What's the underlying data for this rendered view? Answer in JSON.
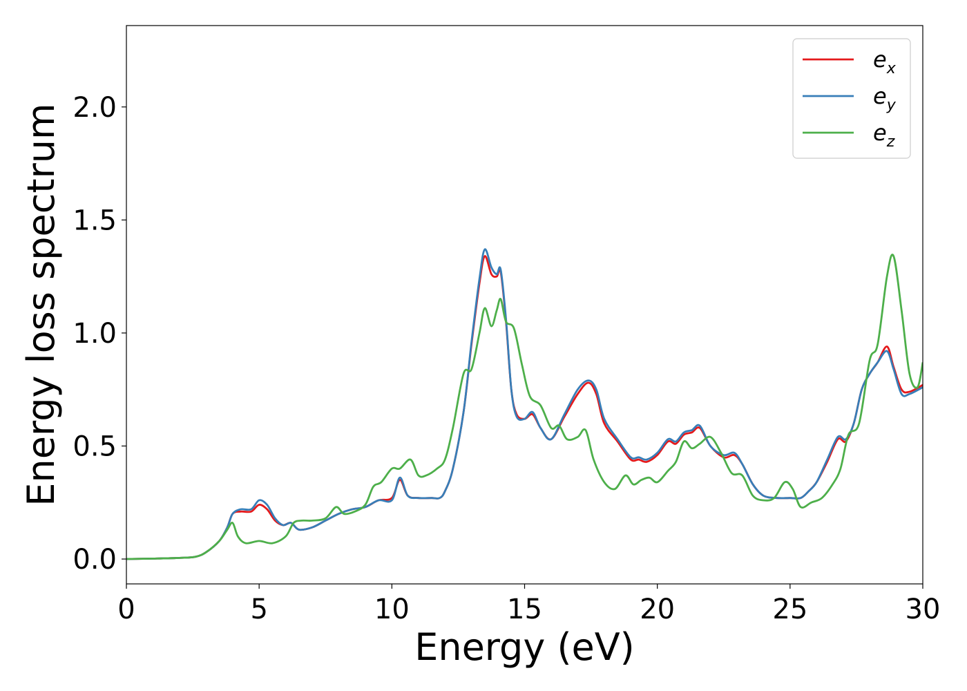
{
  "chart_data": {
    "type": "line",
    "title": "",
    "xlabel": "Energy (eV)",
    "ylabel": "Energy loss spectrum",
    "xlim": [
      0,
      30
    ],
    "ylim": [
      -0.11,
      2.36
    ],
    "xticks": [
      "0",
      "5",
      "10",
      "15",
      "20",
      "25",
      "30"
    ],
    "xtick_values": [
      0,
      5,
      10,
      15,
      20,
      25,
      30
    ],
    "yticks": [
      "0.0",
      "0.5",
      "1.0",
      "1.5",
      "2.0"
    ],
    "ytick_values": [
      0,
      0.5,
      1.0,
      1.5,
      2.0
    ],
    "grid": false,
    "legend_position": "top-right",
    "series": [
      {
        "name": "e",
        "subscript": "x",
        "color": "#e41a1c",
        "x": [
          0,
          1,
          2,
          2.6,
          3.0,
          3.5,
          3.8,
          4.0,
          4.3,
          4.7,
          5.0,
          5.3,
          5.6,
          5.9,
          6.2,
          6.5,
          7.0,
          7.5,
          8.0,
          8.5,
          9.0,
          9.5,
          10.0,
          10.3,
          10.6,
          11.0,
          11.5,
          11.8,
          12.0,
          12.3,
          12.7,
          13.0,
          13.3,
          13.5,
          13.75,
          13.95,
          14.1,
          14.3,
          14.5,
          14.7,
          15.0,
          15.3,
          15.6,
          16.0,
          16.5,
          17.0,
          17.4,
          17.7,
          18.0,
          18.5,
          19.0,
          19.3,
          19.6,
          20.0,
          20.4,
          20.7,
          21.0,
          21.3,
          21.6,
          22.0,
          22.5,
          22.9,
          23.2,
          23.6,
          24.0,
          24.5,
          25.0,
          25.4,
          25.7,
          26.0,
          26.4,
          26.8,
          27.1,
          27.4,
          27.7,
          28.0,
          28.3,
          28.65,
          28.9,
          29.2,
          29.5,
          30.0
        ],
        "y": [
          0,
          0.002,
          0.005,
          0.01,
          0.03,
          0.08,
          0.14,
          0.2,
          0.21,
          0.21,
          0.24,
          0.22,
          0.17,
          0.15,
          0.16,
          0.13,
          0.14,
          0.17,
          0.2,
          0.22,
          0.23,
          0.26,
          0.27,
          0.35,
          0.28,
          0.27,
          0.27,
          0.27,
          0.3,
          0.4,
          0.65,
          0.95,
          1.22,
          1.34,
          1.26,
          1.25,
          1.27,
          1.05,
          0.75,
          0.64,
          0.62,
          0.64,
          0.58,
          0.53,
          0.63,
          0.73,
          0.78,
          0.73,
          0.6,
          0.52,
          0.44,
          0.44,
          0.43,
          0.46,
          0.52,
          0.51,
          0.55,
          0.56,
          0.58,
          0.5,
          0.45,
          0.46,
          0.42,
          0.33,
          0.28,
          0.27,
          0.27,
          0.27,
          0.3,
          0.34,
          0.43,
          0.53,
          0.52,
          0.6,
          0.75,
          0.82,
          0.87,
          0.94,
          0.85,
          0.75,
          0.74,
          0.77
        ]
      },
      {
        "name": "e",
        "subscript": "y",
        "color": "#377eb8",
        "x": [
          0,
          1,
          2,
          2.6,
          3.0,
          3.5,
          3.8,
          4.0,
          4.3,
          4.7,
          5.0,
          5.3,
          5.6,
          5.9,
          6.2,
          6.5,
          7.0,
          7.5,
          8.0,
          8.5,
          9.0,
          9.5,
          10.0,
          10.3,
          10.6,
          11.0,
          11.5,
          11.8,
          12.0,
          12.3,
          12.7,
          13.0,
          13.3,
          13.5,
          13.75,
          13.95,
          14.1,
          14.3,
          14.5,
          14.7,
          15.0,
          15.3,
          15.6,
          16.0,
          16.5,
          17.0,
          17.4,
          17.7,
          18.0,
          18.5,
          19.0,
          19.3,
          19.6,
          20.0,
          20.4,
          20.7,
          21.0,
          21.3,
          21.6,
          22.0,
          22.5,
          22.9,
          23.2,
          23.6,
          24.0,
          24.5,
          25.0,
          25.4,
          25.7,
          26.0,
          26.4,
          26.8,
          27.1,
          27.4,
          27.7,
          28.0,
          28.3,
          28.65,
          28.9,
          29.2,
          29.5,
          30.0
        ],
        "y": [
          0,
          0.002,
          0.005,
          0.01,
          0.03,
          0.08,
          0.14,
          0.2,
          0.22,
          0.22,
          0.26,
          0.24,
          0.18,
          0.15,
          0.16,
          0.13,
          0.14,
          0.17,
          0.2,
          0.22,
          0.23,
          0.26,
          0.26,
          0.36,
          0.28,
          0.27,
          0.27,
          0.27,
          0.3,
          0.4,
          0.65,
          0.96,
          1.24,
          1.37,
          1.29,
          1.26,
          1.28,
          1.06,
          0.75,
          0.63,
          0.62,
          0.65,
          0.58,
          0.53,
          0.64,
          0.75,
          0.79,
          0.75,
          0.62,
          0.53,
          0.45,
          0.45,
          0.44,
          0.47,
          0.53,
          0.52,
          0.56,
          0.57,
          0.59,
          0.5,
          0.46,
          0.47,
          0.42,
          0.33,
          0.28,
          0.27,
          0.27,
          0.27,
          0.3,
          0.34,
          0.44,
          0.54,
          0.53,
          0.6,
          0.75,
          0.82,
          0.87,
          0.92,
          0.84,
          0.73,
          0.73,
          0.76
        ]
      },
      {
        "name": "e",
        "subscript": "z",
        "color": "#4daf4a",
        "x": [
          0,
          1,
          2,
          2.6,
          3.0,
          3.5,
          3.8,
          4.0,
          4.2,
          4.5,
          5.0,
          5.5,
          6.0,
          6.3,
          6.6,
          7.0,
          7.5,
          7.9,
          8.2,
          8.6,
          9.0,
          9.3,
          9.6,
          10.0,
          10.3,
          10.7,
          11.0,
          11.3,
          11.7,
          12.0,
          12.3,
          12.7,
          13.0,
          13.3,
          13.5,
          13.75,
          13.95,
          14.1,
          14.3,
          14.6,
          14.9,
          15.2,
          15.6,
          16.0,
          16.3,
          16.6,
          17.0,
          17.3,
          17.6,
          18.0,
          18.4,
          18.8,
          19.1,
          19.4,
          19.7,
          20.0,
          20.4,
          20.7,
          21.0,
          21.3,
          21.6,
          22.0,
          22.4,
          22.8,
          23.2,
          23.6,
          24.0,
          24.4,
          24.8,
          25.1,
          25.4,
          25.8,
          26.2,
          26.6,
          26.9,
          27.2,
          27.6,
          28.0,
          28.3,
          28.65,
          28.9,
          29.2,
          29.5,
          29.8,
          30.0
        ],
        "y": [
          0,
          0.002,
          0.005,
          0.01,
          0.03,
          0.08,
          0.13,
          0.16,
          0.1,
          0.07,
          0.08,
          0.07,
          0.1,
          0.16,
          0.17,
          0.17,
          0.18,
          0.23,
          0.2,
          0.21,
          0.24,
          0.32,
          0.34,
          0.4,
          0.4,
          0.44,
          0.37,
          0.37,
          0.4,
          0.44,
          0.58,
          0.82,
          0.84,
          1.0,
          1.11,
          1.03,
          1.1,
          1.15,
          1.05,
          1.02,
          0.86,
          0.72,
          0.68,
          0.58,
          0.59,
          0.53,
          0.54,
          0.57,
          0.44,
          0.34,
          0.31,
          0.37,
          0.33,
          0.35,
          0.36,
          0.34,
          0.39,
          0.43,
          0.52,
          0.49,
          0.51,
          0.54,
          0.47,
          0.38,
          0.37,
          0.28,
          0.26,
          0.27,
          0.34,
          0.31,
          0.23,
          0.25,
          0.27,
          0.33,
          0.4,
          0.55,
          0.6,
          0.88,
          0.95,
          1.25,
          1.34,
          1.1,
          0.82,
          0.76,
          0.87
        ]
      }
    ]
  }
}
